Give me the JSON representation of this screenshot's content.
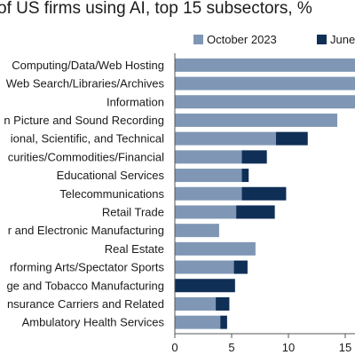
{
  "chart_data": {
    "type": "bar",
    "orientation": "horizontal",
    "stacked": true,
    "title": "of US firms using AI, top 15 subsectors, %",
    "categories": [
      "Computing/Data/Web Hosting",
      "Web Search/Libraries/Archives",
      "Information",
      "n Picture and Sound Recording",
      "ional, Scientific, and Technical",
      "curities/Commodities/Financial",
      "Educational Services",
      "Telecommunications",
      "Retail Trade",
      "r and Electronic Manufacturing",
      "Real Estate",
      "rforming Arts/Spectator Sports",
      "ge and Tobacco Manufacturing",
      "nsurance Carriers and Related",
      "Ambulatory Health Services"
    ],
    "series": [
      {
        "name": "October 2023",
        "color": "#7f97b5",
        "values": [
          16.5,
          16.5,
          16.5,
          14.3,
          8.9,
          5.9,
          5.9,
          5.9,
          5.4,
          3.9,
          7.1,
          5.2,
          0,
          3.6,
          4.0
        ]
      },
      {
        "name": "June",
        "color": "#0f2f57",
        "values": [
          0,
          0,
          0,
          0,
          2.8,
          2.2,
          0.6,
          3.9,
          3.4,
          0,
          0,
          1.2,
          5.3,
          1.2,
          0.6
        ]
      }
    ],
    "xticks": [
      0,
      5,
      10,
      15
    ],
    "xlim": [
      0,
      15.5
    ],
    "legend_position": "top"
  }
}
